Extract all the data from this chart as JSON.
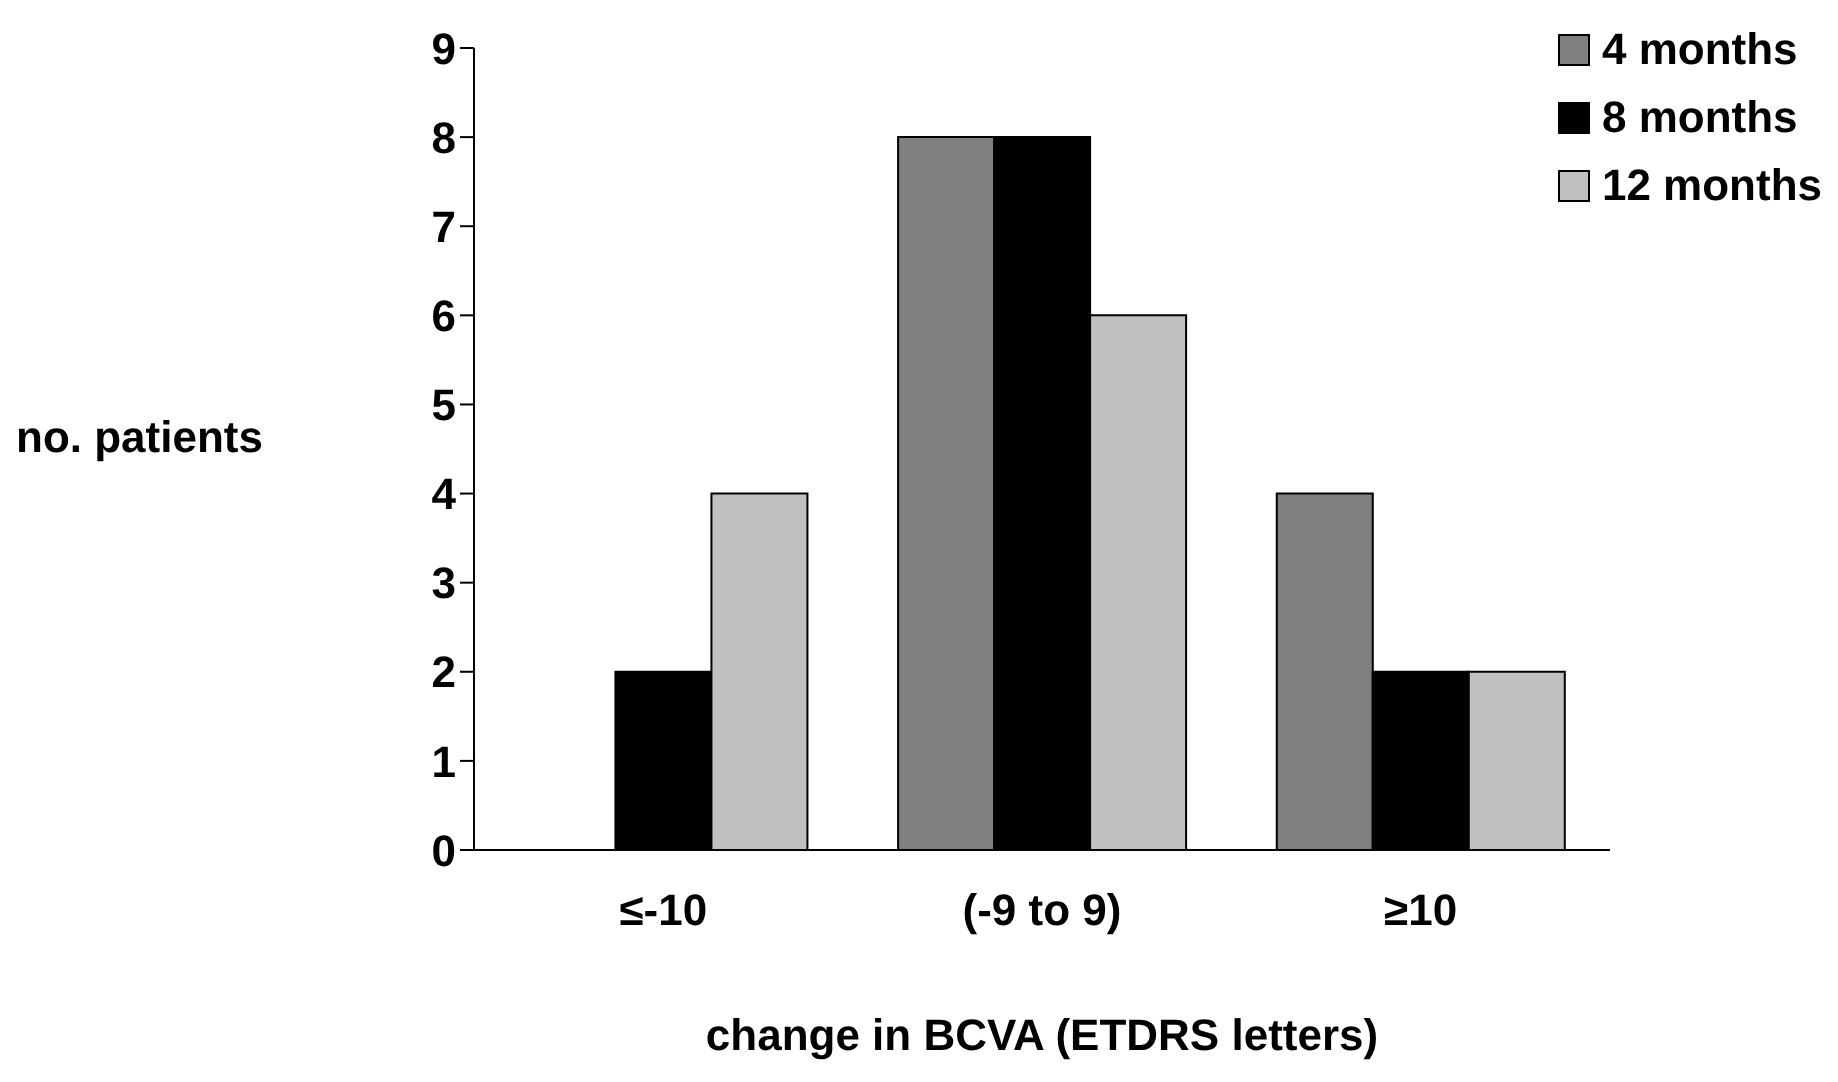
{
  "chart_data": {
    "type": "bar",
    "xlabel": "change in BCVA (ETDRS letters)",
    "ylabel": "no. patients",
    "categories": [
      "≤-10",
      "(-9 to 9)",
      "≥10"
    ],
    "series": [
      {
        "name": "4 months",
        "color": "#808080",
        "values": [
          0,
          8,
          4
        ]
      },
      {
        "name": "8 months",
        "color": "#000000",
        "values": [
          2,
          8,
          2
        ]
      },
      {
        "name": "12 months",
        "color": "#c0c0c0",
        "values": [
          4,
          6,
          2
        ]
      }
    ],
    "ylim": [
      0,
      9
    ],
    "yticks": [
      0,
      1,
      2,
      3,
      4,
      5,
      6,
      7,
      8,
      9
    ],
    "grid": false,
    "legend": "top right"
  }
}
